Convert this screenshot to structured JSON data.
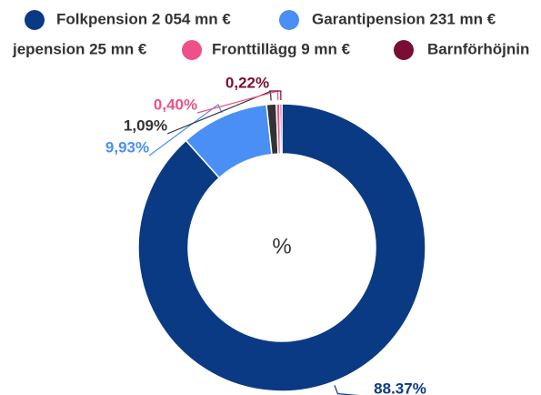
{
  "chart_data": {
    "type": "donut",
    "center_label": "%",
    "series": [
      {
        "name": "Folkpension 2 054 mn €",
        "color": "#0b3a84",
        "values": [
          88.37
        ],
        "value_labels": [
          "88.37%"
        ]
      },
      {
        "name": "Garantipension 231 mn €",
        "color": "#4a8ff5",
        "values": [
          9.93
        ],
        "value_labels": [
          "9,93%"
        ]
      },
      {
        "name": "jepension 25 mn €",
        "color": "#333333",
        "values": [
          1.09
        ],
        "value_labels": [
          "1,09%"
        ]
      },
      {
        "name": "Fronttillägg 9 mn €",
        "color": "#ee5089",
        "values": [
          0.4
        ],
        "value_labels": [
          "0,40%"
        ]
      },
      {
        "name": "Barnförhöjnin",
        "color": "#7a0d36",
        "values": [
          0.22
        ],
        "value_labels": [
          "0,22%"
        ]
      }
    ]
  }
}
